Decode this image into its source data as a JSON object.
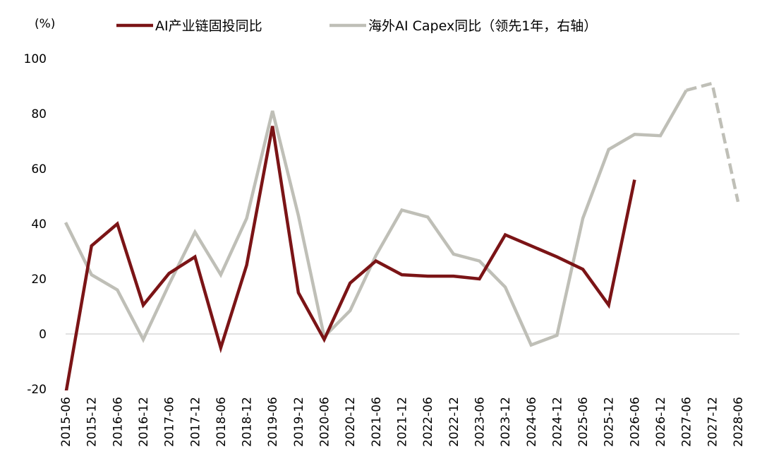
{
  "chart_data": {
    "type": "line",
    "y_unit": "(%)",
    "ylim": [
      -20,
      100
    ],
    "y_ticks": [
      "-20",
      "0",
      "20",
      "40",
      "60",
      "80",
      "100"
    ],
    "grid": false,
    "zero_line": true,
    "legend_position": "top",
    "categories": [
      "2015-06",
      "2015-12",
      "2016-06",
      "2016-12",
      "2017-06",
      "2017-12",
      "2018-06",
      "2018-12",
      "2019-06",
      "2019-12",
      "2020-06",
      "2020-12",
      "2021-06",
      "2021-12",
      "2022-06",
      "2022-12",
      "2023-06",
      "2023-12",
      "2024-06",
      "2024-12",
      "2025-06",
      "2025-12",
      "2026-06",
      "2026-12",
      "2027-06",
      "2027-12",
      "2028-06"
    ],
    "series": [
      {
        "name": "AI产业链固投同比",
        "color": "#7b1416",
        "values": [
          -22,
          32,
          40,
          10.5,
          22,
          28,
          -5,
          25,
          75.5,
          15,
          -2,
          18.5,
          26.5,
          21.5,
          21,
          21,
          20,
          36,
          32,
          28,
          23.5,
          10.5,
          56,
          null,
          null,
          null,
          null
        ]
      },
      {
        "name": "海外AI Capex同比（领先1年，右轴）",
        "color": "#bfbfb7",
        "values": [
          40.5,
          21.5,
          16,
          -2,
          18,
          37,
          21.5,
          42,
          81,
          43,
          -1,
          8.5,
          28.5,
          45,
          42.5,
          29,
          26.5,
          17,
          -4,
          -0.5,
          42,
          67,
          72.5,
          72,
          88.5,
          91,
          48
        ],
        "dashed_from": "2027-06"
      }
    ]
  }
}
